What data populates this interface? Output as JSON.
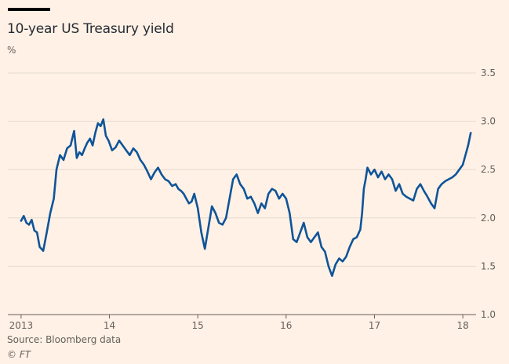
{
  "header": {
    "title": "10-year US Treasury yield",
    "unit": "%"
  },
  "footer": {
    "source": "Source: Bloomberg data",
    "credit": "© FT"
  },
  "colors": {
    "background": "#fff1e5",
    "line": "#0f5499",
    "grid": "#e6d9ce",
    "text": "#66605c"
  },
  "chart_data": {
    "type": "line",
    "title": "10-year US Treasury yield",
    "ylabel": "%",
    "xlim": [
      2012.85,
      2018.15
    ],
    "ylim": [
      1.0,
      3.5
    ],
    "y_ticks": [
      1.0,
      1.5,
      2.0,
      2.5,
      3.0,
      3.5
    ],
    "x_ticks": [
      {
        "x": 2013,
        "label": "2013"
      },
      {
        "x": 2014,
        "label": "14"
      },
      {
        "x": 2015,
        "label": "15"
      },
      {
        "x": 2016,
        "label": "16"
      },
      {
        "x": 2017,
        "label": "17"
      },
      {
        "x": 2018,
        "label": "18"
      }
    ],
    "grid": true,
    "series": [
      {
        "x": [
          2013.0,
          2013.03,
          2013.06,
          2013.09,
          2013.12,
          2013.15,
          2013.18,
          2013.21,
          2013.25,
          2013.29,
          2013.33,
          2013.37,
          2013.4,
          2013.44,
          2013.48,
          2013.52,
          2013.56,
          2013.6,
          2013.63,
          2013.66,
          2013.69,
          2013.72,
          2013.75,
          2013.78,
          2013.81,
          2013.84,
          2013.87,
          2013.9,
          2013.93,
          2013.96,
          2013.99,
          2014.03,
          2014.07,
          2014.11,
          2014.15,
          2014.19,
          2014.23,
          2014.27,
          2014.31,
          2014.35,
          2014.39,
          2014.43,
          2014.47,
          2014.51,
          2014.55,
          2014.59,
          2014.63,
          2014.67,
          2014.71,
          2014.75,
          2014.78,
          2014.81,
          2014.84,
          2014.87,
          2014.9,
          2014.93,
          2014.96,
          2015.0,
          2015.04,
          2015.08,
          2015.12,
          2015.16,
          2015.2,
          2015.24,
          2015.28,
          2015.32,
          2015.36,
          2015.4,
          2015.44,
          2015.48,
          2015.52,
          2015.56,
          2015.6,
          2015.64,
          2015.68,
          2015.72,
          2015.76,
          2015.8,
          2015.84,
          2015.88,
          2015.92,
          2015.96,
          2016.0,
          2016.04,
          2016.08,
          2016.12,
          2016.16,
          2016.2,
          2016.24,
          2016.28,
          2016.32,
          2016.36,
          2016.4,
          2016.44,
          2016.48,
          2016.52,
          2016.56,
          2016.6,
          2016.64,
          2016.68,
          2016.72,
          2016.76,
          2016.8,
          2016.84,
          2016.86,
          2016.88,
          2016.9,
          2016.92,
          2016.96,
          2017.0,
          2017.04,
          2017.08,
          2017.12,
          2017.16,
          2017.2,
          2017.24,
          2017.28,
          2017.32,
          2017.36,
          2017.4,
          2017.44,
          2017.48,
          2017.52,
          2017.56,
          2017.6,
          2017.64,
          2017.68,
          2017.72,
          2017.76,
          2017.8,
          2017.84,
          2017.88,
          2017.92,
          2017.96,
          2018.0,
          2018.03,
          2018.06,
          2018.09
        ],
        "y": [
          1.97,
          2.02,
          1.95,
          1.93,
          1.98,
          1.87,
          1.85,
          1.7,
          1.66,
          1.85,
          2.05,
          2.2,
          2.5,
          2.65,
          2.6,
          2.72,
          2.75,
          2.9,
          2.62,
          2.68,
          2.65,
          2.72,
          2.78,
          2.82,
          2.75,
          2.88,
          2.98,
          2.95,
          3.02,
          2.85,
          2.8,
          2.7,
          2.73,
          2.8,
          2.75,
          2.7,
          2.65,
          2.72,
          2.68,
          2.6,
          2.55,
          2.48,
          2.4,
          2.47,
          2.52,
          2.45,
          2.4,
          2.38,
          2.33,
          2.35,
          2.3,
          2.28,
          2.25,
          2.2,
          2.15,
          2.17,
          2.25,
          2.1,
          1.85,
          1.68,
          1.9,
          2.12,
          2.05,
          1.95,
          1.93,
          2.0,
          2.2,
          2.4,
          2.45,
          2.35,
          2.3,
          2.2,
          2.22,
          2.15,
          2.05,
          2.15,
          2.1,
          2.25,
          2.3,
          2.28,
          2.2,
          2.25,
          2.2,
          2.05,
          1.78,
          1.75,
          1.85,
          1.95,
          1.8,
          1.75,
          1.8,
          1.85,
          1.7,
          1.65,
          1.5,
          1.4,
          1.52,
          1.58,
          1.55,
          1.6,
          1.7,
          1.78,
          1.8,
          1.88,
          2.05,
          2.3,
          2.4,
          2.52,
          2.45,
          2.5,
          2.42,
          2.48,
          2.4,
          2.45,
          2.4,
          2.28,
          2.35,
          2.25,
          2.22,
          2.2,
          2.18,
          2.3,
          2.35,
          2.28,
          2.22,
          2.15,
          2.1,
          2.3,
          2.35,
          2.38,
          2.4,
          2.42,
          2.45,
          2.5,
          2.55,
          2.65,
          2.75,
          2.88
        ]
      }
    ]
  }
}
